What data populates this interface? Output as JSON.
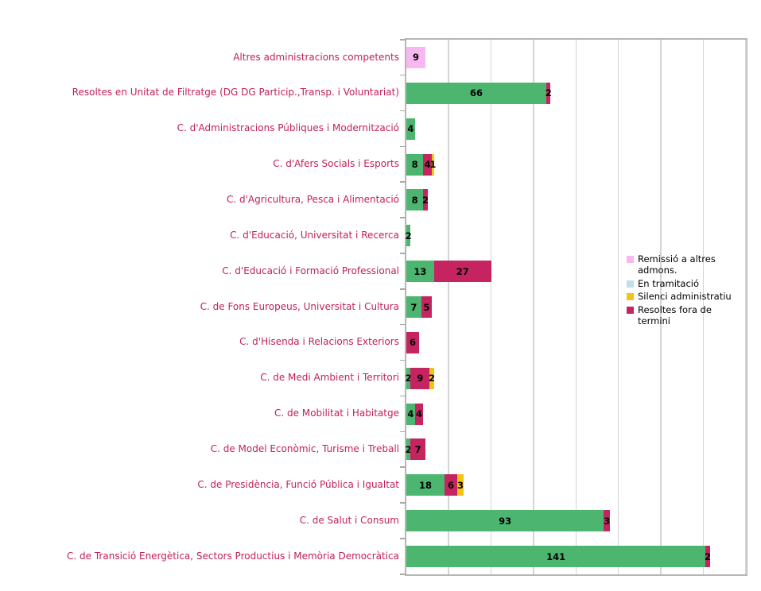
{
  "figure": {
    "background_color": "#ffffff",
    "title": ""
  },
  "chart_data": {
    "type": "bar",
    "orientation": "horizontal",
    "stacked": true,
    "title": "",
    "xlabel": "",
    "ylabel": "",
    "x_axis": {
      "min": 0,
      "max": 160,
      "grid_step": 20,
      "tick_labels_visible": false,
      "grid": true
    },
    "categories": [
      "Altres  administracions competents",
      "Resoltes  en Unitat de Filtratge (DG DG Particip.,Transp. i Voluntariat)",
      "C. d'Administracions Públiques i Modernització",
      "C. d'Afers Socials i Esports",
      "C. d'Agricultura, Pesca i Alimentació",
      "C. d'Educació, Universitat i Recerca",
      "C. d'Educació i Formació Professional",
      "C. de Fons Europeus, Universitat i Cultura",
      "C. d'Hisenda i Relacions Exteriors",
      "C. de Medi Ambient i Territori",
      "C. de Mobilitat i Habitatge",
      "C. de Model Econòmic, Turisme i Treball",
      "C.  de Presidència, Funció Pública i Igualtat",
      "C. de Salut i Consum",
      "C. de Transició Energètica, Sectors Productius i Memòria Democràtica"
    ],
    "series": [
      {
        "name": "",
        "color": "#4cb56f",
        "values": [
          0,
          66,
          4,
          8,
          8,
          2,
          13,
          7,
          0,
          2,
          4,
          2,
          18,
          93,
          141
        ]
      },
      {
        "name": "Resoltes fora de termini",
        "color": "#c52460",
        "values": [
          0,
          2,
          0,
          4,
          2,
          0,
          27,
          5,
          6,
          9,
          4,
          7,
          6,
          3,
          2
        ]
      },
      {
        "name": "Silenci administratiu",
        "color": "#f2c318",
        "values": [
          0,
          0,
          0,
          1,
          0,
          0,
          0,
          0,
          0,
          2,
          0,
          0,
          3,
          0,
          0
        ]
      },
      {
        "name": "En tramitació",
        "color": "#bfdfe9",
        "values": [
          0,
          0,
          0,
          0,
          0,
          0,
          0,
          0,
          0,
          0,
          0,
          0,
          0,
          0,
          0
        ]
      },
      {
        "name": "Remissió a altres admons.",
        "color": "#f8b7f0",
        "values": [
          9,
          0,
          0,
          0,
          0,
          0,
          0,
          0,
          0,
          0,
          0,
          0,
          0,
          0,
          0
        ]
      }
    ],
    "data_labels": {
      "visible": true,
      "color": "#000000",
      "bold": true,
      "placement": "center of segment, non-zero segments only"
    },
    "legend": {
      "position": "middle-right",
      "entries": [
        {
          "label": "Remissió a altres admons.",
          "color": "#f8b7f0"
        },
        {
          "label": "En tramitació",
          "color": "#bfdfe9"
        },
        {
          "label": "Silenci administratiu",
          "color": "#f2c318"
        },
        {
          "label": "Resoltes fora de termini",
          "color": "#c52460"
        }
      ]
    },
    "style_colors": {
      "category_label": "#c2205a",
      "gridline": "#d4d4d4",
      "plot_border": "#b6b6b6",
      "axis_tick": "#a8a8a8"
    }
  }
}
